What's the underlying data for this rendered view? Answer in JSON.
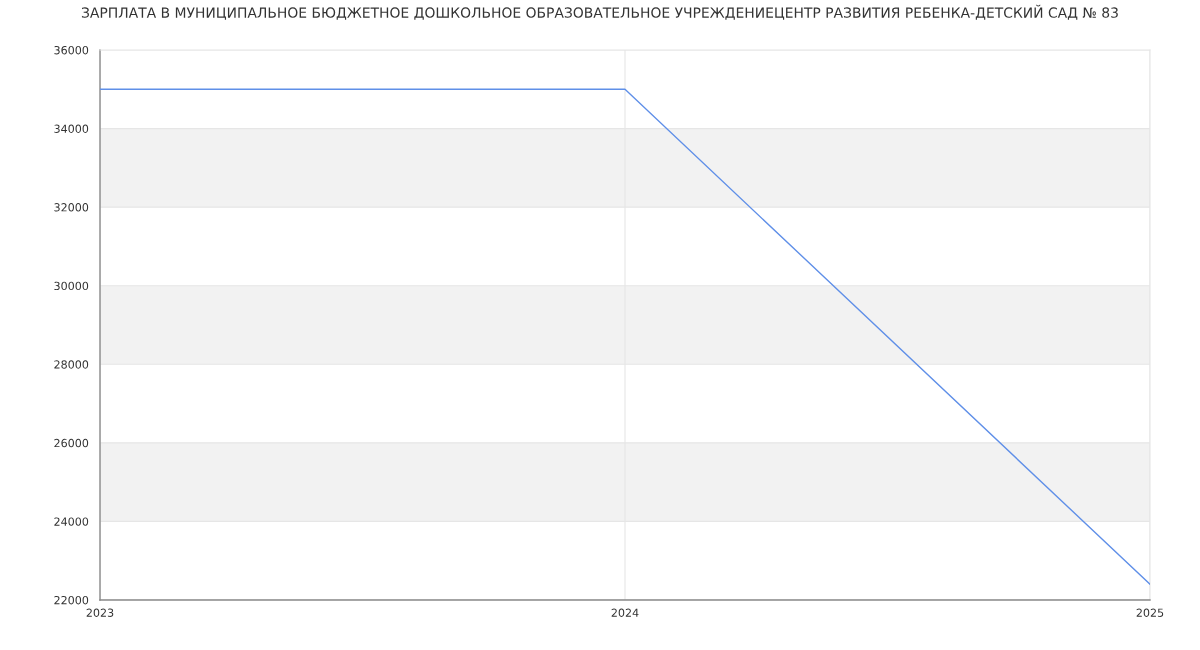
{
  "chart_data": {
    "type": "line",
    "title": "ЗАРПЛАТА В МУНИЦИПАЛЬНОЕ БЮДЖЕТНОЕ ДОШКОЛЬНОЕ ОБРАЗОВАТЕЛЬНОЕ УЧРЕЖДЕНИЕЦЕНТР РАЗВИТИЯ РЕБЕНКА-ДЕТСКИЙ САД № 83",
    "x": [
      2023,
      2024,
      2025
    ],
    "series": [
      {
        "color": "#5f8fe8",
        "values": [
          35000,
          35000,
          22400
        ]
      }
    ],
    "xlim": [
      2023,
      2025
    ],
    "xticks": [
      2023,
      2024,
      2025
    ],
    "ylim": [
      22000,
      36000
    ],
    "yticks": [
      22000,
      24000,
      26000,
      28000,
      30000,
      32000,
      34000,
      36000
    ],
    "bands": [
      {
        "axis": "y",
        "from": 24000,
        "to": 26000,
        "color": "#f2f2f2"
      },
      {
        "axis": "y",
        "from": 28000,
        "to": 30000,
        "color": "#f2f2f2"
      },
      {
        "axis": "y",
        "from": 32000,
        "to": 34000,
        "color": "#f2f2f2"
      }
    ],
    "grid": true,
    "marker": "none",
    "line_style": "solid"
  }
}
